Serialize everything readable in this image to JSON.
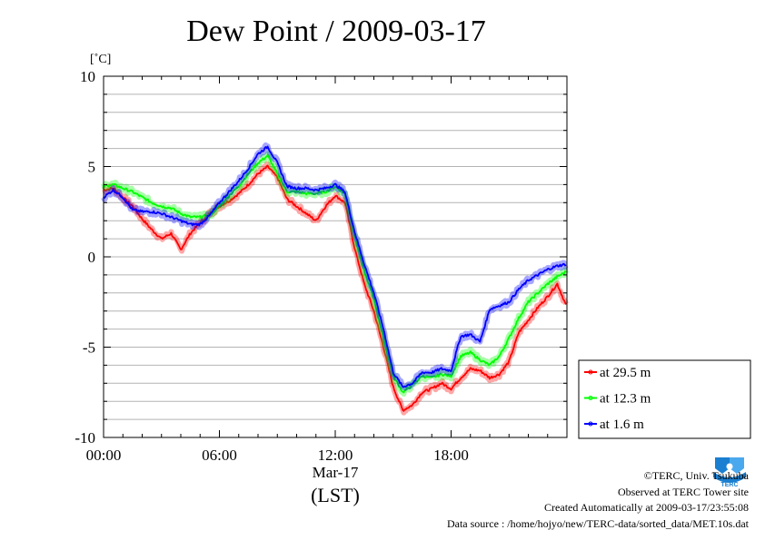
{
  "title": "Dew Point / 2009-03-17",
  "unit_label": "[˚C]",
  "date_label": "Mar-17",
  "time_zone_label": "(LST)",
  "credits": {
    "copyright": "©TERC, Univ. Tsukuba",
    "site": "Observed at TERC Tower site",
    "created": "Created Automatically at 2009-03-17/23:55:08",
    "source": "Data source : /home/hojyo/new/TERC-data/sorted_data/MET.10s.dat"
  },
  "logo_text": "TERC",
  "chart_data": {
    "type": "line",
    "title": "Dew Point / 2009-03-17",
    "ylabel": "[˚C]",
    "xlabel": "(LST)",
    "xlim": [
      0,
      24
    ],
    "ylim": [
      -10,
      10
    ],
    "x_ticks": [
      0,
      6,
      12,
      18
    ],
    "x_tick_labels": [
      "00:00",
      "06:00",
      "12:00",
      "18:00"
    ],
    "y_ticks": [
      10,
      5,
      0,
      -5,
      -10
    ],
    "y_tick_labels": [
      "10",
      "5",
      "0",
      "-5",
      "-10"
    ],
    "grid": true,
    "legend_position": "bottom-right",
    "x": [
      0,
      0.5,
      1,
      1.5,
      2,
      2.5,
      3,
      3.5,
      4,
      4.5,
      5,
      5.5,
      6,
      6.5,
      7,
      7.5,
      8,
      8.5,
      9,
      9.5,
      10,
      10.5,
      11,
      11.5,
      12,
      12.5,
      13,
      13.5,
      14,
      14.5,
      15,
      15.5,
      16,
      16.5,
      17,
      17.5,
      18,
      18.5,
      19,
      19.5,
      20,
      20.5,
      21,
      21.5,
      22,
      22.5,
      23,
      23.5,
      24
    ],
    "series": [
      {
        "name": "at 29.5 m",
        "color": "#ff0000",
        "values": [
          3.7,
          3.8,
          3.3,
          2.8,
          2.1,
          1.5,
          1.0,
          1.3,
          0.4,
          1.3,
          1.9,
          2.4,
          2.8,
          3.1,
          3.5,
          4.0,
          4.6,
          5.0,
          4.4,
          3.2,
          2.8,
          2.4,
          2.0,
          2.8,
          3.4,
          3.0,
          0.5,
          -1.5,
          -3.0,
          -5.0,
          -7.2,
          -8.5,
          -8.2,
          -7.5,
          -7.3,
          -7.0,
          -7.3,
          -6.7,
          -6.2,
          -6.3,
          -6.7,
          -6.5,
          -5.8,
          -4.2,
          -3.5,
          -2.8,
          -2.2,
          -1.5,
          -2.8
        ]
      },
      {
        "name": "at 12.3 m",
        "color": "#00ff00",
        "values": [
          3.9,
          4.0,
          3.8,
          3.6,
          3.3,
          3.0,
          2.8,
          2.7,
          2.4,
          2.2,
          2.2,
          2.3,
          2.8,
          3.4,
          3.9,
          4.6,
          5.2,
          5.6,
          4.6,
          3.6,
          3.6,
          3.5,
          3.5,
          3.6,
          3.9,
          3.5,
          1.2,
          -0.8,
          -2.3,
          -4.5,
          -6.6,
          -7.5,
          -7.1,
          -6.6,
          -6.7,
          -6.5,
          -6.6,
          -5.5,
          -5.3,
          -5.7,
          -6.0,
          -5.5,
          -4.5,
          -3.4,
          -2.5,
          -2.0,
          -1.5,
          -1.1,
          -0.8
        ]
      },
      {
        "name": "at 1.6 m",
        "color": "#0000ff",
        "values": [
          3.3,
          3.7,
          3.3,
          2.6,
          2.5,
          2.5,
          2.4,
          2.2,
          2.0,
          1.8,
          1.8,
          2.3,
          3.0,
          3.6,
          4.2,
          4.9,
          5.7,
          6.1,
          5.2,
          3.9,
          3.8,
          3.8,
          3.7,
          3.8,
          4.0,
          3.6,
          1.4,
          -0.4,
          -2.0,
          -4.0,
          -6.4,
          -7.2,
          -7.0,
          -6.4,
          -6.4,
          -6.2,
          -6.3,
          -4.4,
          -4.3,
          -4.7,
          -2.9,
          -2.7,
          -2.5,
          -1.8,
          -1.3,
          -1.0,
          -0.7,
          -0.5,
          -0.4
        ]
      }
    ]
  }
}
